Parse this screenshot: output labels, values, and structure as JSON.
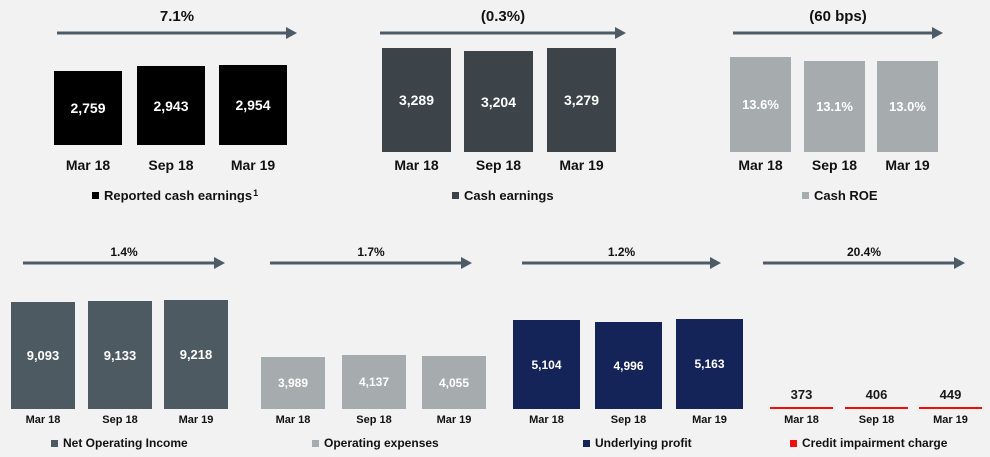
{
  "colors": {
    "arrow": "#4d5b66",
    "text": "#111111",
    "bar_value_text": "#ffffff"
  },
  "chart_data": [
    {
      "type": "bar",
      "change_label": "7.1%",
      "categories": [
        "Mar 18",
        "Sep 18",
        "Mar 19"
      ],
      "values": [
        2759,
        2943,
        2954
      ],
      "value_labels": [
        "2,759",
        "2,943",
        "2,954"
      ],
      "color": "#000000",
      "legend": "Reported cash earnings",
      "legend_superscript": "1"
    },
    {
      "type": "bar",
      "change_label": "(0.3%)",
      "categories": [
        "Mar 18",
        "Sep 18",
        "Mar 19"
      ],
      "values": [
        3289,
        3204,
        3279
      ],
      "value_labels": [
        "3,289",
        "3,204",
        "3,279"
      ],
      "color": "#3c4449",
      "legend": "Cash earnings"
    },
    {
      "type": "bar",
      "change_label": "(60 bps)",
      "categories": [
        "Mar 18",
        "Sep 18",
        "Mar 19"
      ],
      "values": [
        13.6,
        13.1,
        13.0
      ],
      "value_labels": [
        "13.6%",
        "13.1%",
        "13.0%"
      ],
      "color": "#a6abad",
      "legend": "Cash ROE"
    },
    {
      "type": "bar",
      "change_label": "1.4%",
      "categories": [
        "Mar 18",
        "Sep 18",
        "Mar 19"
      ],
      "values": [
        9093,
        9133,
        9218
      ],
      "value_labels": [
        "9,093",
        "9,133",
        "9,218"
      ],
      "color": "#4e5a62",
      "legend": "Net Operating Income"
    },
    {
      "type": "bar",
      "change_label": "1.7%",
      "categories": [
        "Mar 18",
        "Sep 18",
        "Mar 19"
      ],
      "values": [
        3989,
        4137,
        4055
      ],
      "value_labels": [
        "3,989",
        "4,137",
        "4,055"
      ],
      "color": "#a6abad",
      "legend": "Operating expenses"
    },
    {
      "type": "bar",
      "change_label": "1.2%",
      "categories": [
        "Mar 18",
        "Sep 18",
        "Mar 19"
      ],
      "values": [
        5104,
        4996,
        5163
      ],
      "value_labels": [
        "5,104",
        "4,996",
        "5,163"
      ],
      "color": "#142458",
      "legend": "Underlying profit"
    },
    {
      "type": "bar",
      "change_label": "20.4%",
      "categories": [
        "Mar 18",
        "Sep 18",
        "Mar 19"
      ],
      "values": [
        373,
        406,
        449
      ],
      "value_labels": [
        "373",
        "406",
        "449"
      ],
      "color": "#f20d0d",
      "legend": "Credit impairment charge",
      "value_label_position": "above"
    }
  ]
}
